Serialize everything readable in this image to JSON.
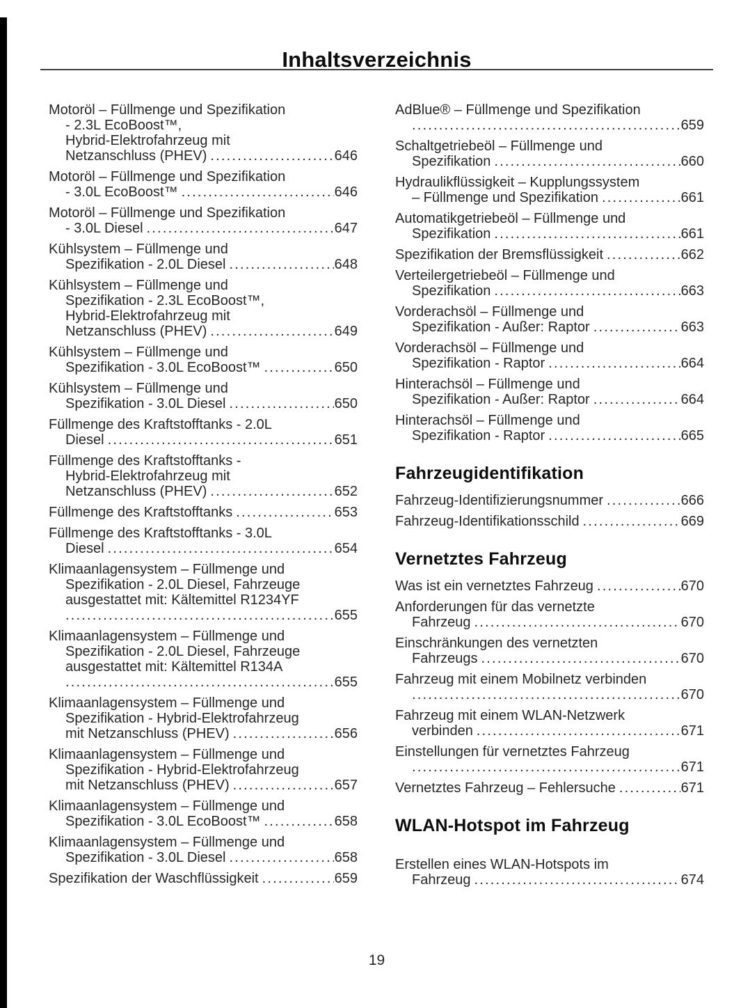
{
  "page": {
    "title": "Inhaltsverzeichnis",
    "page_number": "19"
  },
  "colors": {
    "text": "#262626",
    "heading_text": "#0d0d0d",
    "edge_bar": "#000000",
    "rule": "#3d3d3d",
    "background": "#ffffff"
  },
  "toc": {
    "columns": [
      {
        "side": "left",
        "items": [
          {
            "type": "entry",
            "pre_lines": [
              "Motoröl – Füllmenge und Spezifikation",
              "- 2.3L EcoBoost™,",
              "Hybrid-Elektrofahrzeug mit"
            ],
            "last_line": "Netzanschluss (PHEV)",
            "page": "646"
          },
          {
            "type": "entry",
            "pre_lines": [
              "Motoröl – Füllmenge und Spezifikation"
            ],
            "last_line": "- 3.0L EcoBoost™",
            "page": "646"
          },
          {
            "type": "entry",
            "pre_lines": [
              "Motoröl – Füllmenge und Spezifikation"
            ],
            "last_line": "- 3.0L Diesel",
            "page": "647"
          },
          {
            "type": "entry",
            "pre_lines": [
              "Kühlsystem – Füllmenge und"
            ],
            "last_line": "Spezifikation - 2.0L Diesel",
            "page": "648"
          },
          {
            "type": "entry",
            "pre_lines": [
              "Kühlsystem – Füllmenge und",
              "Spezifikation - 2.3L EcoBoost™,",
              "Hybrid-Elektrofahrzeug mit"
            ],
            "last_line": "Netzanschluss (PHEV)",
            "page": "649"
          },
          {
            "type": "entry",
            "pre_lines": [
              "Kühlsystem – Füllmenge und"
            ],
            "last_line": "Spezifikation - 3.0L EcoBoost™",
            "page": "650"
          },
          {
            "type": "entry",
            "pre_lines": [
              "Kühlsystem – Füllmenge und"
            ],
            "last_line": "Spezifikation - 3.0L Diesel",
            "page": "650"
          },
          {
            "type": "entry",
            "pre_lines": [
              "Füllmenge des Kraftstofftanks - 2.0L"
            ],
            "last_line": "Diesel",
            "page": "651"
          },
          {
            "type": "entry",
            "pre_lines": [
              "Füllmenge des Kraftstofftanks -",
              "Hybrid-Elektrofahrzeug mit"
            ],
            "last_line": "Netzanschluss (PHEV)",
            "page": "652"
          },
          {
            "type": "entry",
            "pre_lines": [],
            "last_line": "Füllmenge des Kraftstofftanks",
            "page": "653"
          },
          {
            "type": "entry",
            "pre_lines": [
              "Füllmenge des Kraftstofftanks - 3.0L"
            ],
            "last_line": "Diesel",
            "page": "654"
          },
          {
            "type": "entry",
            "pre_lines": [
              "Klimaanlagensystem – Füllmenge und",
              "Spezifikation - 2.0L Diesel, Fahrzeuge",
              "ausgestattet mit: Kältemittel R1234YF"
            ],
            "last_line": "",
            "page": "655"
          },
          {
            "type": "entry",
            "pre_lines": [
              "Klimaanlagensystem – Füllmenge und",
              "Spezifikation - 2.0L Diesel, Fahrzeuge",
              "ausgestattet mit: Kältemittel R134A"
            ],
            "last_line": "",
            "page": "655"
          },
          {
            "type": "entry",
            "pre_lines": [
              "Klimaanlagensystem – Füllmenge und",
              "Spezifikation - Hybrid-Elektrofahrzeug"
            ],
            "last_line": "mit Netzanschluss (PHEV)",
            "page": "656"
          },
          {
            "type": "entry",
            "pre_lines": [
              "Klimaanlagensystem – Füllmenge und",
              "Spezifikation - Hybrid-Elektrofahrzeug"
            ],
            "last_line": "mit Netzanschluss (PHEV)",
            "page": "657"
          },
          {
            "type": "entry",
            "pre_lines": [
              "Klimaanlagensystem – Füllmenge und"
            ],
            "last_line": "Spezifikation - 3.0L EcoBoost™",
            "page": "658"
          },
          {
            "type": "entry",
            "pre_lines": [
              "Klimaanlagensystem – Füllmenge und"
            ],
            "last_line": "Spezifikation - 3.0L Diesel",
            "page": "658"
          },
          {
            "type": "entry",
            "pre_lines": [],
            "last_line": "Spezifikation der Waschflüssigkeit",
            "page": "659"
          }
        ]
      },
      {
        "side": "right",
        "items": [
          {
            "type": "entry",
            "pre_lines": [
              "AdBlue® – Füllmenge und Spezifikation"
            ],
            "last_line": "",
            "page": "659"
          },
          {
            "type": "entry",
            "pre_lines": [
              "Schaltgetriebeöl – Füllmenge und"
            ],
            "last_line": "Spezifikation",
            "page": "660"
          },
          {
            "type": "entry",
            "pre_lines": [
              "Hydraulikflüssigkeit – Kupplungssystem"
            ],
            "last_line": "– Füllmenge und Spezifikation",
            "page": "661"
          },
          {
            "type": "entry",
            "pre_lines": [
              "Automatikgetriebeöl – Füllmenge und"
            ],
            "last_line": "Spezifikation",
            "page": "661"
          },
          {
            "type": "entry",
            "pre_lines": [],
            "last_line": "Spezifikation der Bremsflüssigkeit",
            "page": "662"
          },
          {
            "type": "entry",
            "pre_lines": [
              "Verteilergetriebeöl – Füllmenge und"
            ],
            "last_line": "Spezifikation",
            "page": "663"
          },
          {
            "type": "entry",
            "pre_lines": [
              "Vorderachsöl – Füllmenge und"
            ],
            "last_line": "Spezifikation - Außer: Raptor",
            "page": "663"
          },
          {
            "type": "entry",
            "pre_lines": [
              "Vorderachsöl – Füllmenge und"
            ],
            "last_line": "Spezifikation - Raptor",
            "page": "664"
          },
          {
            "type": "entry",
            "pre_lines": [
              "Hinterachsöl – Füllmenge und"
            ],
            "last_line": "Spezifikation - Außer: Raptor",
            "page": "664"
          },
          {
            "type": "entry",
            "pre_lines": [
              "Hinterachsöl – Füllmenge und"
            ],
            "last_line": "Spezifikation - Raptor",
            "page": "665"
          },
          {
            "type": "heading",
            "text": "Fahrzeugidentifikation"
          },
          {
            "type": "entry",
            "pre_lines": [],
            "last_line": "Fahrzeug-Identifizierungsnummer",
            "page": "666"
          },
          {
            "type": "entry",
            "pre_lines": [],
            "last_line": "Fahrzeug-Identifikationsschild",
            "page": "669"
          },
          {
            "type": "heading",
            "text": "Vernetztes Fahrzeug"
          },
          {
            "type": "entry",
            "pre_lines": [],
            "last_line": "Was ist ein vernetztes Fahrzeug",
            "page": "670"
          },
          {
            "type": "entry",
            "pre_lines": [
              "Anforderungen für das vernetzte"
            ],
            "last_line": "Fahrzeug",
            "page": "670"
          },
          {
            "type": "entry",
            "pre_lines": [
              "Einschränkungen des vernetzten"
            ],
            "last_line": "Fahrzeugs",
            "page": "670"
          },
          {
            "type": "entry",
            "pre_lines": [
              "Fahrzeug mit einem Mobilnetz verbinden"
            ],
            "last_line": "",
            "page": "670"
          },
          {
            "type": "entry",
            "pre_lines": [
              "Fahrzeug mit einem WLAN-Netzwerk"
            ],
            "last_line": "verbinden",
            "page": "671"
          },
          {
            "type": "entry",
            "pre_lines": [
              "Einstellungen für vernetztes Fahrzeug"
            ],
            "last_line": "",
            "page": "671"
          },
          {
            "type": "entry",
            "pre_lines": [],
            "last_line": "Vernetztes Fahrzeug – Fehlersuche",
            "page": "671"
          },
          {
            "type": "heading",
            "text": "WLAN-Hotspot im Fahrzeug",
            "extra_gap_after": true
          },
          {
            "type": "entry",
            "pre_lines": [
              "Erstellen eines WLAN-Hotspots im"
            ],
            "last_line": "Fahrzeug",
            "page": "674"
          }
        ]
      }
    ]
  }
}
